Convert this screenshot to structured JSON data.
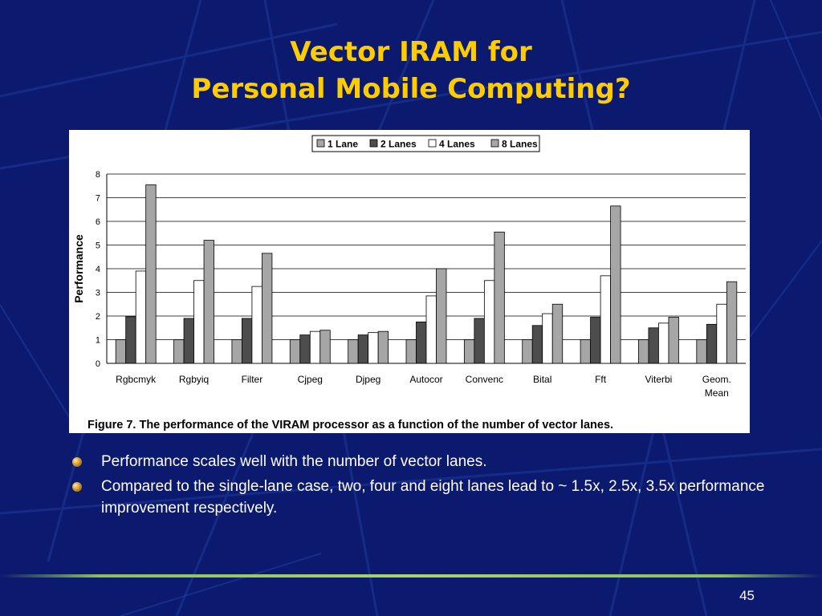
{
  "slide": {
    "title_line1": "Vector IRAM for",
    "title_line2": "Personal Mobile Computing?",
    "bullets": [
      "Performance scales well with the number of vector lanes.",
      "Compared to the single-lane case, two, four and eight lanes lead to ~ 1.5x, 2.5x, 3.5x performance improvement respectively."
    ],
    "page_number": "45"
  },
  "colors": {
    "background": "#0b1a6e",
    "title": "#ffcc00",
    "text": "#ffffff",
    "series": [
      "#a6a6a6",
      "#4d4d4d",
      "#ffffff",
      "#a6a6a6"
    ]
  },
  "chart_data": {
    "type": "bar",
    "caption": "Figure 7. The performance of the VIRAM processor as a function of the number of vector lanes.",
    "ylabel": "Performance",
    "xlabel": "",
    "ylim": [
      0,
      8
    ],
    "yticks": [
      "0",
      "1",
      "2",
      "3",
      "4",
      "5",
      "6",
      "7",
      "8"
    ],
    "grid": true,
    "legend": "top",
    "categories": [
      "Rgbcmyk",
      "Rgbyiq",
      "Filter",
      "Cjpeg",
      "Djpeg",
      "Autocor",
      "Convenc",
      "Bital",
      "Fft",
      "Viterbi",
      "Geom. Mean"
    ],
    "series": [
      {
        "name": "1 Lane",
        "values": [
          1,
          1,
          1,
          1,
          1,
          1,
          1,
          1,
          1,
          1,
          1
        ]
      },
      {
        "name": "2 Lanes",
        "values": [
          1.97,
          1.9,
          1.9,
          1.2,
          1.2,
          1.75,
          1.9,
          1.6,
          1.95,
          1.5,
          1.65
        ]
      },
      {
        "name": "4 Lanes",
        "values": [
          3.9,
          3.5,
          3.25,
          1.35,
          1.3,
          2.85,
          3.5,
          2.1,
          3.7,
          1.7,
          2.5
        ]
      },
      {
        "name": "8 Lanes",
        "values": [
          7.55,
          5.2,
          4.65,
          1.4,
          1.35,
          4.0,
          5.55,
          2.5,
          6.65,
          1.95,
          3.45
        ]
      }
    ]
  }
}
